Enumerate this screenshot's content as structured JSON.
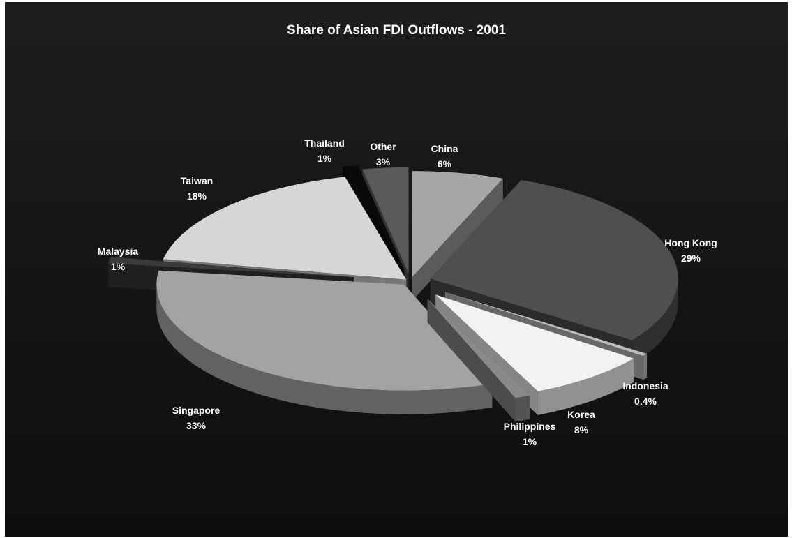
{
  "chart_data": {
    "type": "pie",
    "title": "Share of Asian FDI Outflows - 2001",
    "three_d": true,
    "exploded": true,
    "slices": [
      {
        "label": "China",
        "value_text": "6%",
        "value": 6,
        "color": "#a6a6a6"
      },
      {
        "label": "Hong Kong",
        "value_text": "29%",
        "value": 29,
        "color": "#4f4f4f"
      },
      {
        "label": "Indonesia",
        "value_text": "0.4%",
        "value": 0.4,
        "color": "#bdbdbd"
      },
      {
        "label": "Korea",
        "value_text": "8%",
        "value": 8,
        "color": "#f2f2f2"
      },
      {
        "label": "Philippines",
        "value_text": "1%",
        "value": 1,
        "color": "#8a8a8a"
      },
      {
        "label": "Singapore",
        "value_text": "33%",
        "value": 33,
        "color": "#a3a3a3"
      },
      {
        "label": "Malaysia",
        "value_text": "1%",
        "value": 1,
        "color": "#3a3a3a"
      },
      {
        "label": "Taiwan",
        "value_text": "18%",
        "value": 18,
        "color": "#d6d6d6"
      },
      {
        "label": "Thailand",
        "value_text": "1%",
        "value": 1,
        "color": "#0a0a0a"
      },
      {
        "label": "Other",
        "value_text": "3%",
        "value": 3,
        "color": "#5a5a5a"
      }
    ]
  }
}
